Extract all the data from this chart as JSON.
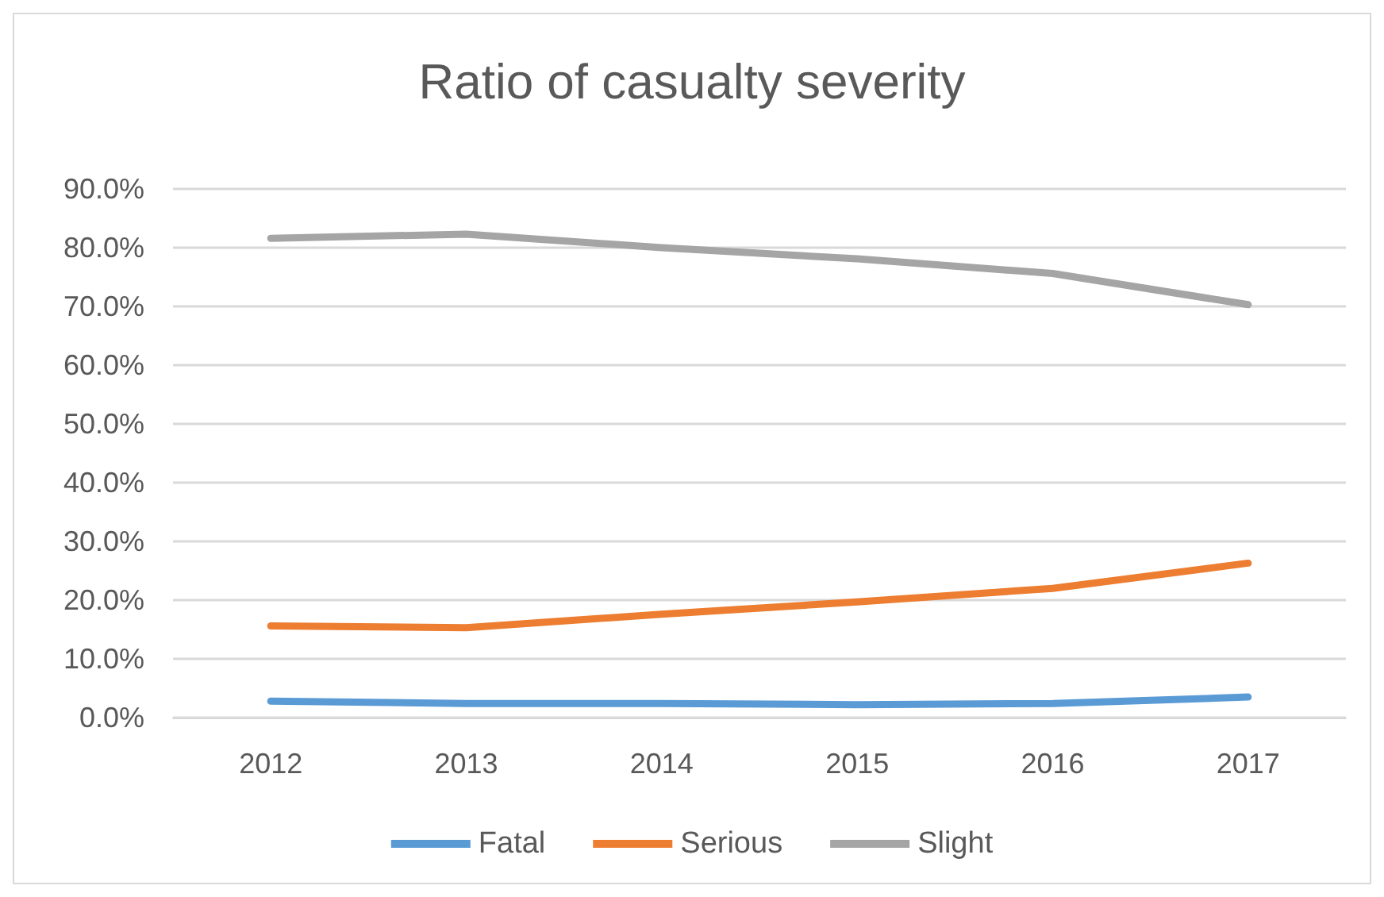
{
  "chart_data": {
    "type": "line",
    "title": "Ratio of casualty severity",
    "categories": [
      "2012",
      "2013",
      "2014",
      "2015",
      "2016",
      "2017"
    ],
    "series": [
      {
        "name": "Fatal",
        "color": "#5b9bd5",
        "values": [
          2.8,
          2.4,
          2.4,
          2.2,
          2.4,
          3.5
        ]
      },
      {
        "name": "Serious",
        "color": "#ed7d31",
        "values": [
          15.6,
          15.3,
          17.6,
          19.7,
          22,
          26.3
        ]
      },
      {
        "name": "Slight",
        "color": "#a5a5a5",
        "values": [
          81.6,
          82.3,
          80,
          78.1,
          75.6,
          70.3
        ]
      }
    ],
    "ylim": [
      0,
      90
    ],
    "yticks": [
      {
        "value": 0,
        "label": "0.0%"
      },
      {
        "value": 10,
        "label": "10.0%"
      },
      {
        "value": 20,
        "label": "20.0%"
      },
      {
        "value": 30,
        "label": "30.0%"
      },
      {
        "value": 40,
        "label": "40.0%"
      },
      {
        "value": 50,
        "label": "50.0%"
      },
      {
        "value": 60,
        "label": "60.0%"
      },
      {
        "value": 70,
        "label": "70.0%"
      },
      {
        "value": 80,
        "label": "80.0%"
      },
      {
        "value": 90,
        "label": "90.0%"
      }
    ],
    "grid": "y",
    "legend": "bottom",
    "marker": "none",
    "line_style": "solid"
  }
}
